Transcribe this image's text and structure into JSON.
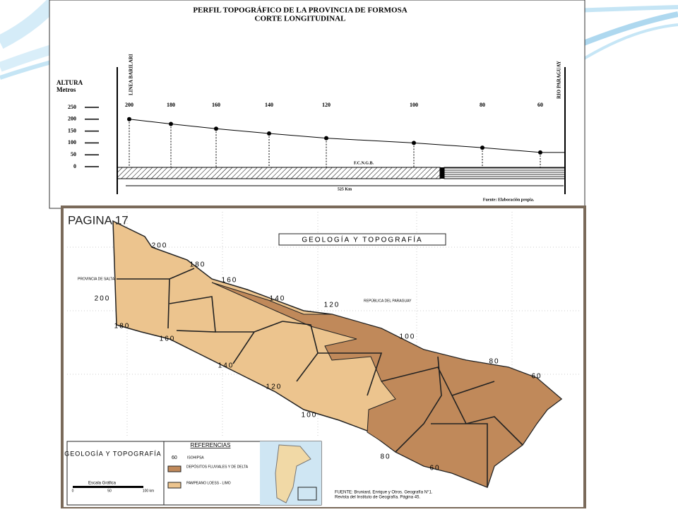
{
  "chart_data": {
    "type": "line",
    "title": "PERFIL TOPOGRÁFICO DE LA PROVINCIA DE FORMOSA",
    "subtitle": "CORTE LONGITUDINAL",
    "y_label": "ALTURA",
    "y_unit": "Metros",
    "values": [
      200,
      180,
      160,
      140,
      120,
      100,
      80,
      60
    ],
    "color": "#000000",
    "ylim": [
      0,
      250
    ],
    "yticks": [
      0,
      50,
      100,
      150,
      200,
      250
    ],
    "annotations": [
      "LINEA BARILARI",
      "RIO PARAGUAY",
      "F.C.N.G.B.",
      "525 Km",
      "Fuente: Elaboración propia."
    ]
  },
  "map": {
    "page": "PAGINA 17",
    "title": "GEOLOGÍA Y TOPOGRAFÍA",
    "places": [
      "PROVINCIA DE SALTA",
      "REPÚBLICA DEL PARAGUAY"
    ],
    "contours_north": [
      "200",
      "180",
      "160",
      "140",
      "120",
      "100",
      "80",
      "60"
    ],
    "contours_south": [
      "200",
      "180",
      "160",
      "140",
      "120",
      "100",
      "80",
      "60"
    ],
    "legend": {
      "title": "GEOLOGÍA Y TOPOGRAFÍA",
      "scale": "Escala Gráfica",
      "scale_ticks": [
        "0",
        "50",
        "100 km"
      ],
      "heading": "REFERENCIAS",
      "isohipsa_value": "60",
      "isohipsa": "ISOHIPSA",
      "fluvial": "DEPÓSITOS FLUVIALES Y DE DELTA",
      "pampeano": "PAMPEANO LOESS - LIMO"
    },
    "source": [
      "FUENTE: Bruniard, Enrique y Otros. Geografía N°1.",
      "Revista del Instituto de Geografía. Página 45."
    ]
  }
}
